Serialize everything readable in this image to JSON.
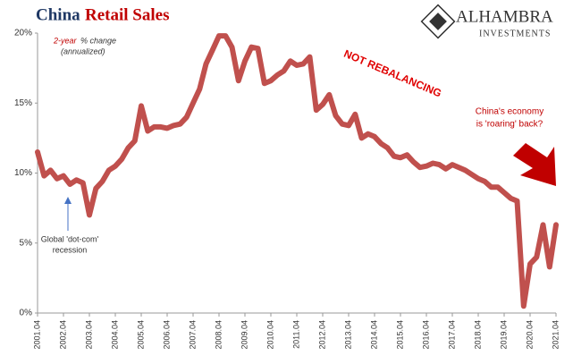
{
  "chart_data": {
    "type": "line",
    "title": [
      "China",
      "Retail Sales"
    ],
    "logo": [
      "ALHAMBRA",
      "INVESTMENTS"
    ],
    "annotations": {
      "measure": [
        "2-year",
        "% change",
        "(annualized)"
      ],
      "rebalancing": "NOT REBALANCING",
      "roaring": [
        "China's economy",
        "is 'roaring' back?"
      ],
      "dotcom": [
        "Global 'dot-com'",
        "recession"
      ]
    },
    "x": [
      "2001.04",
      "2001.07",
      "2001.10",
      "2002.01",
      "2002.04",
      "2002.07",
      "2002.10",
      "2003.01",
      "2003.04",
      "2003.07",
      "2003.10",
      "2004.01",
      "2004.04",
      "2004.07",
      "2004.10",
      "2005.01",
      "2005.04",
      "2005.07",
      "2005.10",
      "2006.01",
      "2006.04",
      "2006.07",
      "2006.10",
      "2007.01",
      "2007.04",
      "2007.07",
      "2007.10",
      "2008.01",
      "2008.04",
      "2008.07",
      "2008.10",
      "2009.01",
      "2009.04",
      "2009.07",
      "2009.10",
      "2010.01",
      "2010.04",
      "2010.07",
      "2010.10",
      "2011.01",
      "2011.04",
      "2011.07",
      "2011.10",
      "2012.01",
      "2012.04",
      "2012.07",
      "2012.10",
      "2013.01",
      "2013.04",
      "2013.07",
      "2013.10",
      "2014.01",
      "2014.04",
      "2014.07",
      "2014.10",
      "2015.01",
      "2015.04",
      "2015.07",
      "2015.10",
      "2016.01",
      "2016.04",
      "2016.07",
      "2016.10",
      "2017.01",
      "2017.04",
      "2017.07",
      "2017.10",
      "2018.01",
      "2018.04",
      "2018.07",
      "2018.10",
      "2019.01",
      "2019.04",
      "2019.07",
      "2019.10",
      "2020.01",
      "2020.04",
      "2020.07",
      "2020.10",
      "2021.01",
      "2021.04"
    ],
    "series": [
      {
        "name": "China Retail Sales",
        "color": "#c0504d",
        "values": [
          11.5,
          9.8,
          10.2,
          9.6,
          9.8,
          9.2,
          9.5,
          9.3,
          7.0,
          8.9,
          9.4,
          10.2,
          10.5,
          11.0,
          11.8,
          12.3,
          14.8,
          13.0,
          13.3,
          13.3,
          13.2,
          13.4,
          13.5,
          14.0,
          15.0,
          16.0,
          17.8,
          18.8,
          19.8,
          19.8,
          19.0,
          16.6,
          18.0,
          19.0,
          18.9,
          16.4,
          16.6,
          17.0,
          17.3,
          18.0,
          17.7,
          17.8,
          18.3,
          14.5,
          14.9,
          15.6,
          14.1,
          13.5,
          13.4,
          14.2,
          12.5,
          12.8,
          12.6,
          12.1,
          11.8,
          11.2,
          11.1,
          11.3,
          10.8,
          10.4,
          10.5,
          10.7,
          10.6,
          10.3,
          10.6,
          10.4,
          10.2,
          9.9,
          9.6,
          9.4,
          9.0,
          9.0,
          8.6,
          8.2,
          8.0,
          0.5,
          3.5,
          4.0,
          6.3,
          3.3,
          6.3
        ]
      }
    ],
    "xticks": [
      "2001.04",
      "2002.04",
      "2003.04",
      "2004.04",
      "2005.04",
      "2006.04",
      "2007.04",
      "2008.04",
      "2009.04",
      "2010.04",
      "2011.04",
      "2012.04",
      "2013.04",
      "2014.04",
      "2015.04",
      "2016.04",
      "2017.04",
      "2018.04",
      "2019.04",
      "2020.04",
      "2021.04"
    ],
    "ylim": [
      0,
      20
    ],
    "yticks": [
      {
        "value": 0,
        "label": "0%"
      },
      {
        "value": 5,
        "label": "5%"
      },
      {
        "value": 10,
        "label": "10%"
      },
      {
        "value": 15,
        "label": "15%"
      },
      {
        "value": 20,
        "label": "20%"
      }
    ],
    "grid": false
  }
}
